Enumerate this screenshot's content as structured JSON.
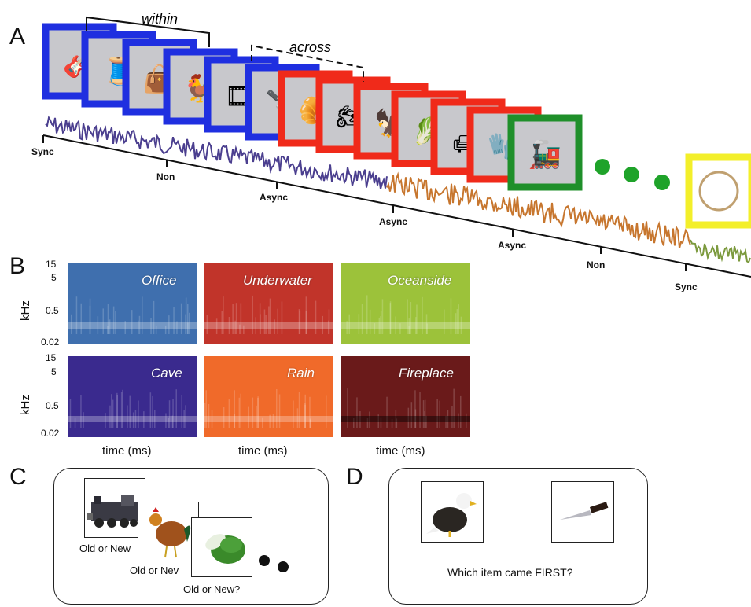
{
  "panels": {
    "a": "A",
    "b": "B",
    "c": "C",
    "d": "D"
  },
  "panel_a": {
    "bracket_within": "within",
    "bracket_across": "across",
    "timeline_labels": [
      "Sync",
      "Non",
      "Async",
      "Async",
      "Async",
      "Non",
      "Sync"
    ],
    "frame_colors": {
      "blue": "#1f2fe0",
      "red": "#f02a1a",
      "green": "#1f8f2a",
      "yellow": "#f3ef2a"
    },
    "sound_colors": {
      "purple": "#4b3f8f",
      "orange": "#c7762e",
      "olive": "#7c9a3e"
    },
    "item_icons": [
      "guitar-icon",
      "sewing-machine-icon",
      "bag-icon",
      "rooster-icon",
      "tape-dispenser-icon",
      "knife-icon",
      "pastry-icon",
      "motorcycle-icon",
      "eagle-icon",
      "cabbage-icon",
      "armchair-icon",
      "glove-icon",
      "train-icon",
      "bracelet-icon"
    ]
  },
  "panel_b": {
    "y_ticks": [
      "15",
      "5",
      "0.5",
      "0.02"
    ],
    "y_label": "kHz",
    "x_label": "time (ms)",
    "spectrograms": [
      {
        "name": "Office",
        "color": "#3f6fae"
      },
      {
        "name": "Underwater",
        "color": "#c1342a"
      },
      {
        "name": "Oceanside",
        "color": "#9cc23a"
      },
      {
        "name": "Cave",
        "color": "#3a2a8e"
      },
      {
        "name": "Rain",
        "color": "#f06a2a"
      },
      {
        "name": "Fireplace",
        "color": "#6a1a1a"
      }
    ]
  },
  "panel_c": {
    "prompts": [
      "Old or New?",
      "Old or New?",
      "Old or New?"
    ],
    "prompt_visible": [
      "Old or New",
      "Old or Nev",
      "Old or New?"
    ]
  },
  "panel_d": {
    "question": "Which item came FIRST?"
  }
}
